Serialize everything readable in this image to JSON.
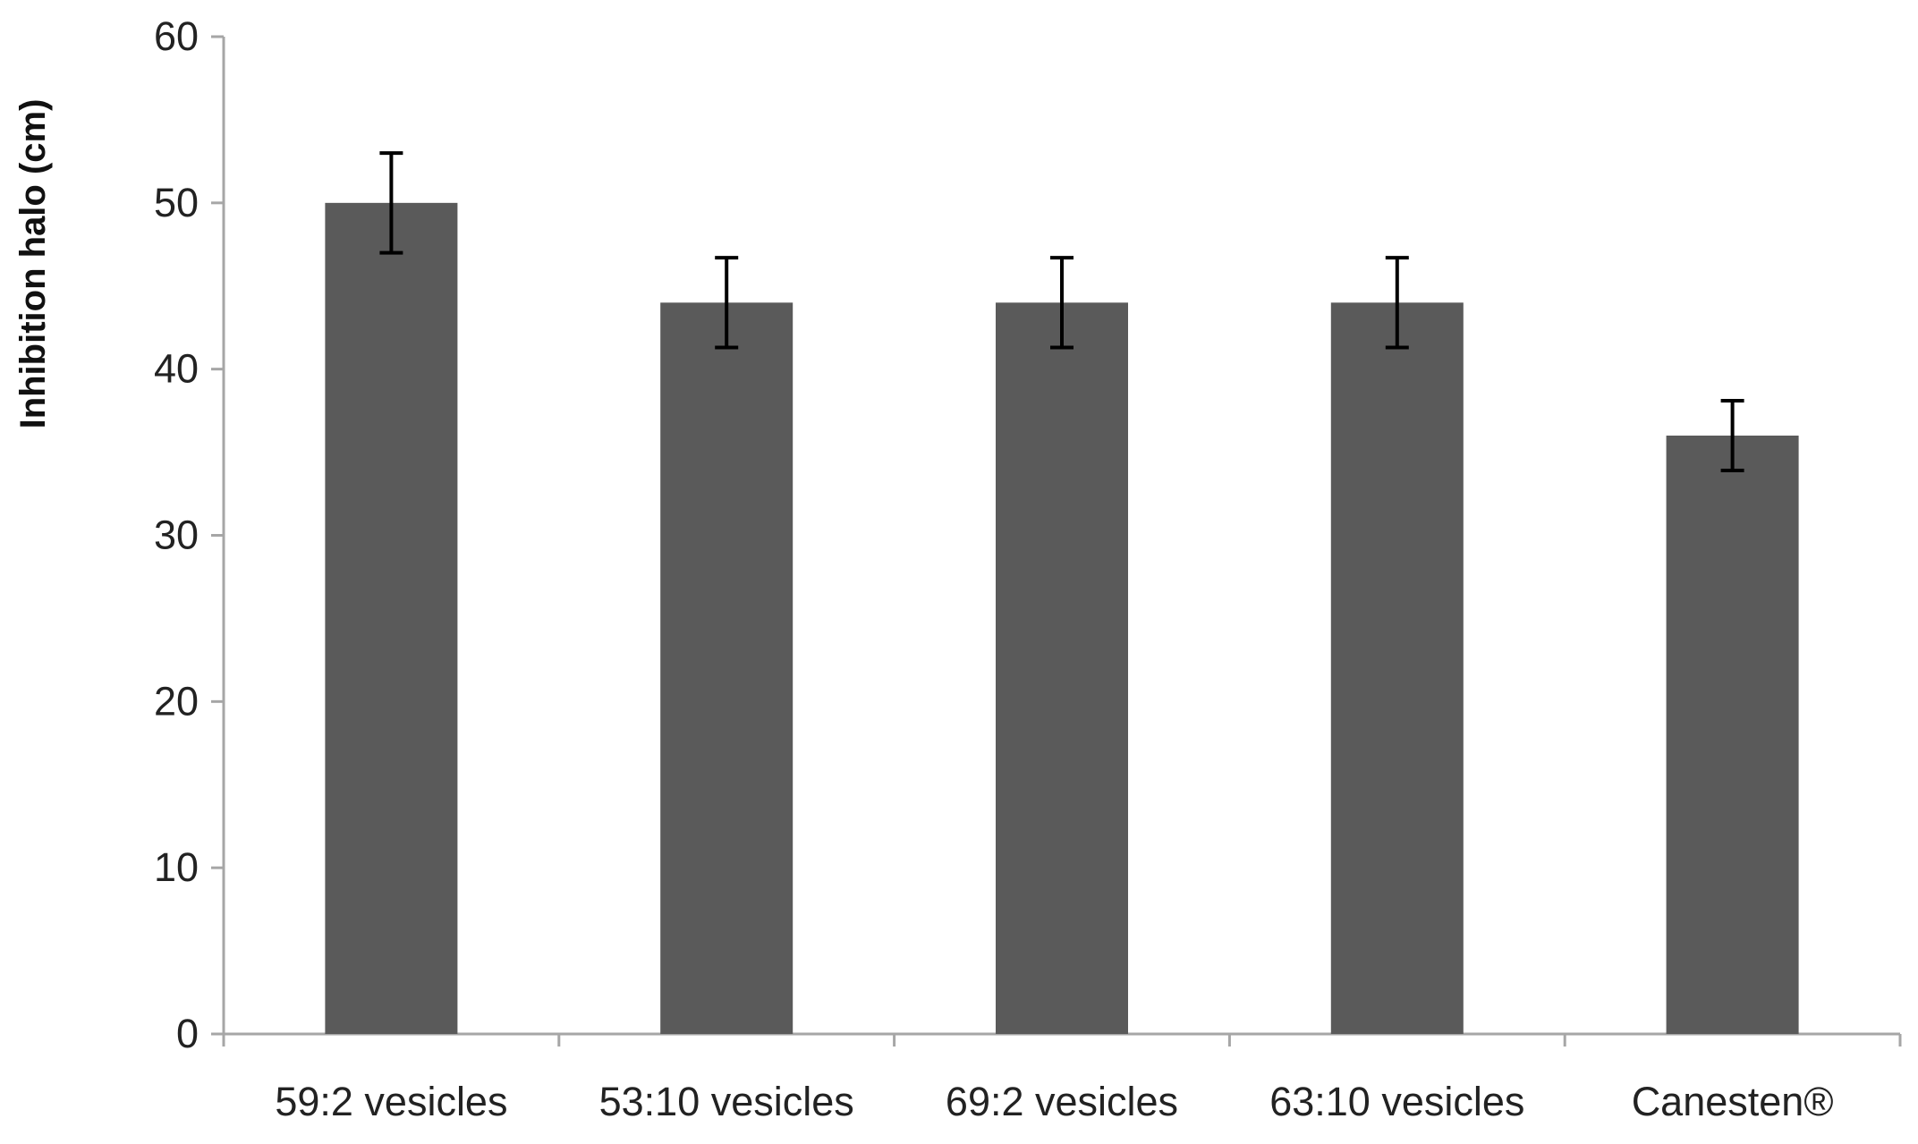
{
  "chart_data": {
    "type": "bar",
    "title": "",
    "xlabel": "",
    "ylabel": "Inhibition halo (cm)",
    "ylim": [
      0,
      60
    ],
    "yticks": [
      0,
      10,
      20,
      30,
      40,
      50,
      60
    ],
    "categories": [
      "59:2 vesicles",
      "53:10 vesicles",
      "69:2 vesicles",
      "63:10 vesicles",
      "Canesten®"
    ],
    "values": [
      50,
      44,
      44,
      44,
      36
    ],
    "errors": [
      3,
      2.7,
      2.7,
      2.7,
      2.1
    ],
    "bar_color": "#5a5a5a",
    "axis_color": "#a6a6a6",
    "grid": false,
    "legend": "none"
  }
}
